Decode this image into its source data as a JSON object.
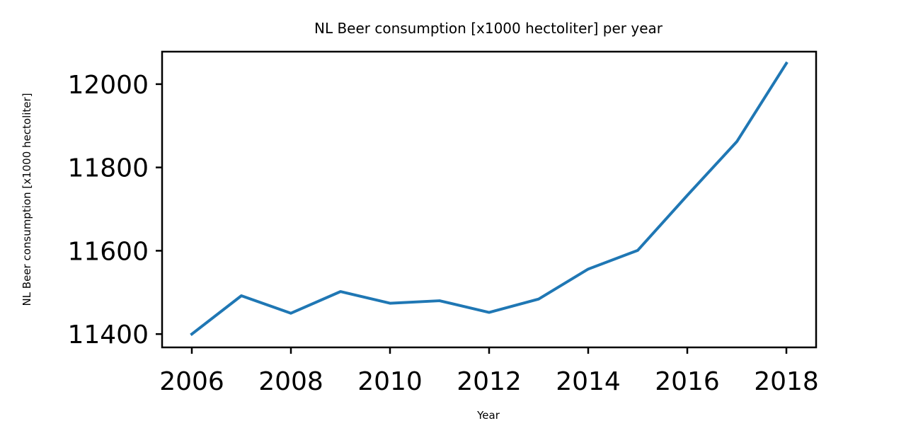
{
  "chart_data": {
    "type": "line",
    "title": "NL Beer consumption [x1000 hectoliter] per year",
    "xlabel": "Year",
    "ylabel": "NL Beer consumption [x1000 hectoliter]",
    "x": [
      2006,
      2007,
      2008,
      2009,
      2010,
      2011,
      2012,
      2013,
      2014,
      2015,
      2016,
      2017,
      2018
    ],
    "series": [
      {
        "values": [
          11400,
          11492,
          11450,
          11502,
          11474,
          11480,
          11452,
          11484,
          11556,
          11601,
          11733,
          11862,
          12050
        ],
        "color": "#1f77b4"
      }
    ],
    "xlim": [
      2005.4,
      2018.6
    ],
    "ylim": [
      11368,
      12078
    ],
    "x_ticks": [
      "2006",
      "2008",
      "2010",
      "2012",
      "2014",
      "2016",
      "2018"
    ],
    "y_ticks": [
      "11400",
      "11600",
      "11800",
      "12000"
    ],
    "grid": false,
    "legend": "none"
  }
}
